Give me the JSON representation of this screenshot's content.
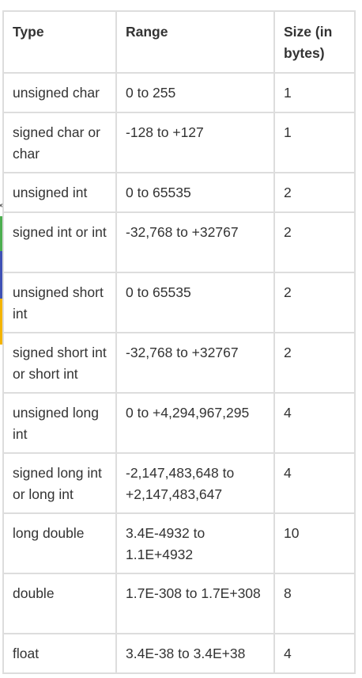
{
  "edge": {
    "close_glyph": "×"
  },
  "headers": [
    "Type",
    "Range",
    "Size (in bytes)"
  ],
  "rows": [
    [
      "unsigned char",
      "0 to 255",
      "1"
    ],
    [
      "signed char or char",
      "-128 to +127",
      "1"
    ],
    [
      "unsigned int",
      "0 to 65535",
      "2"
    ],
    [
      "signed int or int",
      "-32,768 to +32767",
      "2"
    ],
    [
      "unsigned short int",
      "0 to 65535",
      "2"
    ],
    [
      "signed short int or short int",
      "-32,768 to +32767",
      "2"
    ],
    [
      "unsigned long int",
      "0 to +4,294,967,295",
      "4"
    ],
    [
      "signed long int or long int",
      "-2,147,483,648 to +2,147,483,647",
      "4"
    ],
    [
      "long double",
      "3.4E-4932 to 1.1E+4932",
      "10"
    ],
    [
      "double",
      "1.7E-308 to 1.7E+308",
      "8"
    ],
    [
      "float",
      "3.4E-38 to 3.4E+38",
      "4"
    ]
  ]
}
